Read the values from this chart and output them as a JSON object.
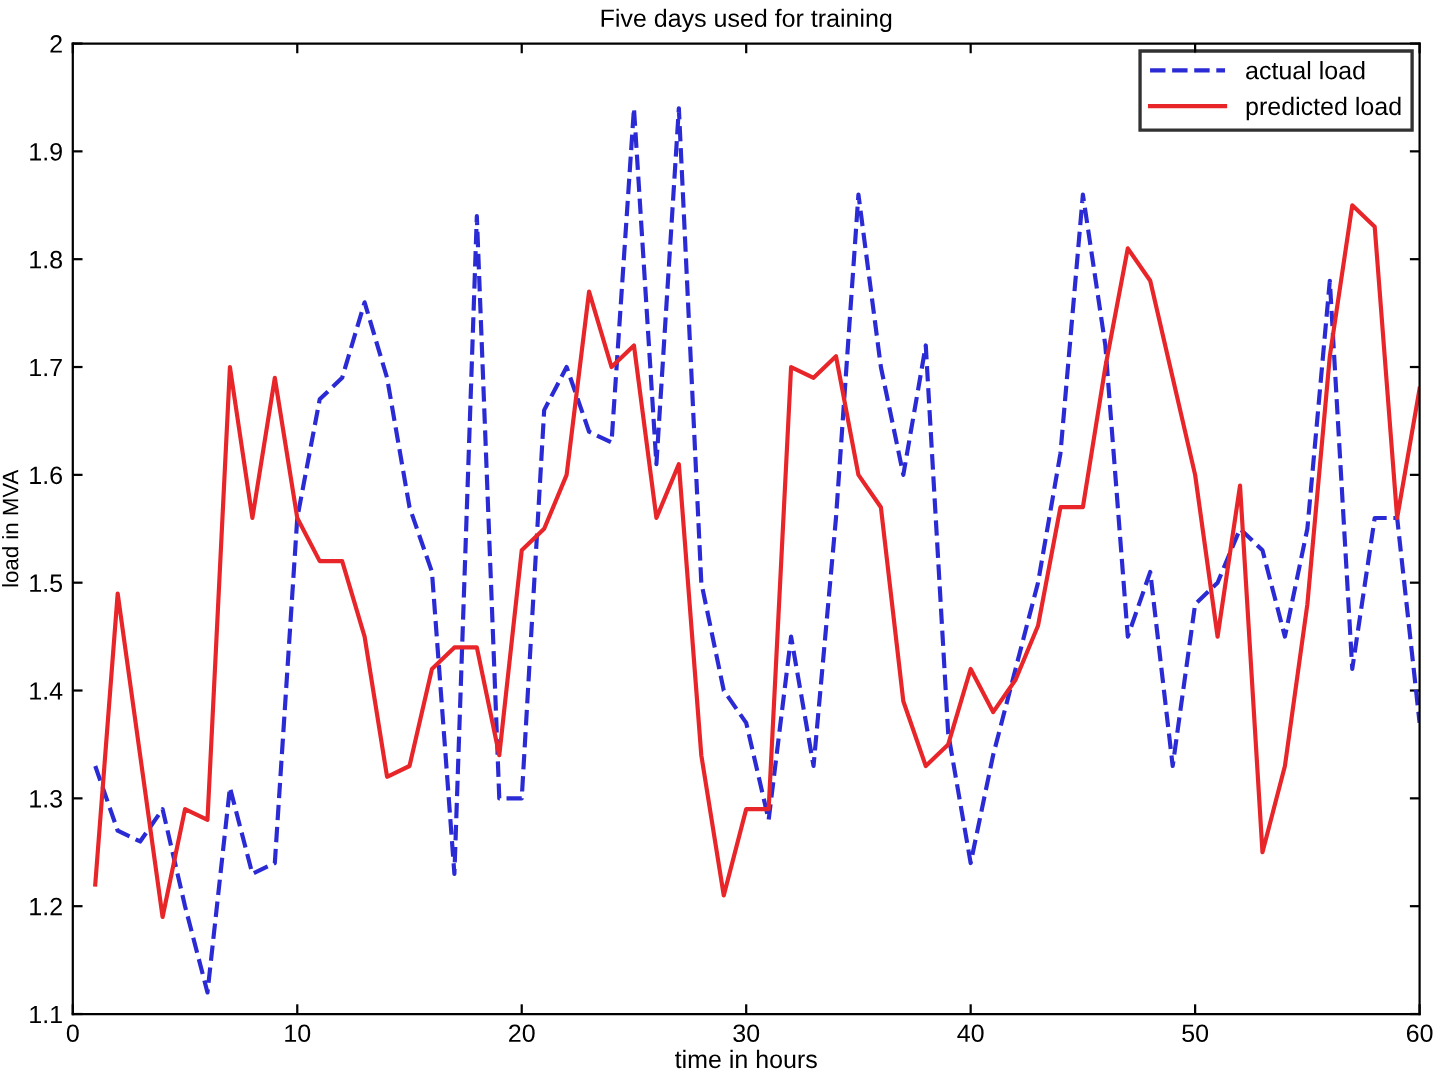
{
  "chart_data": {
    "type": "line",
    "title": "Five days used for training",
    "xlabel": "time in hours",
    "ylabel": "load in MVA",
    "x": [
      1,
      2,
      3,
      4,
      5,
      6,
      7,
      8,
      9,
      10,
      11,
      12,
      13,
      14,
      15,
      16,
      17,
      18,
      19,
      20,
      21,
      22,
      23,
      24,
      25,
      26,
      27,
      28,
      29,
      30,
      31,
      32,
      33,
      34,
      35,
      36,
      37,
      38,
      39,
      40,
      41,
      42,
      43,
      44,
      45,
      46,
      47,
      48,
      49,
      50,
      51,
      52,
      53,
      54,
      55,
      56,
      57,
      58,
      59,
      60
    ],
    "series": [
      {
        "name": "actual load",
        "color": "#2b2bd6",
        "line_style": "dashed",
        "values": [
          1.33,
          1.27,
          1.26,
          1.29,
          1.2,
          1.12,
          1.31,
          1.23,
          1.24,
          1.56,
          1.67,
          1.69,
          1.76,
          1.69,
          1.57,
          1.51,
          1.23,
          1.84,
          1.3,
          1.3,
          1.66,
          1.7,
          1.64,
          1.63,
          1.94,
          1.61,
          1.94,
          1.5,
          1.4,
          1.37,
          1.28,
          1.45,
          1.33,
          1.56,
          1.86,
          1.7,
          1.6,
          1.72,
          1.36,
          1.24,
          1.34,
          1.42,
          1.5,
          1.62,
          1.86,
          1.72,
          1.45,
          1.51,
          1.33,
          1.48,
          1.5,
          1.55,
          1.53,
          1.45,
          1.55,
          1.78,
          1.42,
          1.56,
          1.56,
          1.37
        ]
      },
      {
        "name": "predicted load",
        "color": "#e8262a",
        "line_style": "solid",
        "values": [
          1.22,
          1.49,
          1.34,
          1.19,
          1.29,
          1.28,
          1.7,
          1.56,
          1.69,
          1.56,
          1.52,
          1.52,
          1.45,
          1.32,
          1.33,
          1.42,
          1.44,
          1.44,
          1.34,
          1.53,
          1.55,
          1.6,
          1.77,
          1.7,
          1.72,
          1.56,
          1.61,
          1.34,
          1.21,
          1.29,
          1.29,
          1.7,
          1.69,
          1.71,
          1.6,
          1.57,
          1.39,
          1.33,
          1.35,
          1.42,
          1.38,
          1.41,
          1.46,
          1.57,
          1.57,
          1.7,
          1.81,
          1.78,
          1.69,
          1.6,
          1.45,
          1.59,
          1.25,
          1.33,
          1.48,
          1.71,
          1.85,
          1.83,
          1.56,
          1.68
        ]
      }
    ],
    "xlim": [
      0,
      60
    ],
    "xticks": [
      0,
      10,
      20,
      30,
      40,
      50,
      60
    ],
    "ylim": [
      1.1,
      2
    ],
    "yticks": [
      1.1,
      1.2,
      1.3,
      1.4,
      1.5,
      1.6,
      1.7,
      1.8,
      1.9,
      2
    ],
    "grid": false,
    "legend": "top right",
    "marker": "none"
  }
}
